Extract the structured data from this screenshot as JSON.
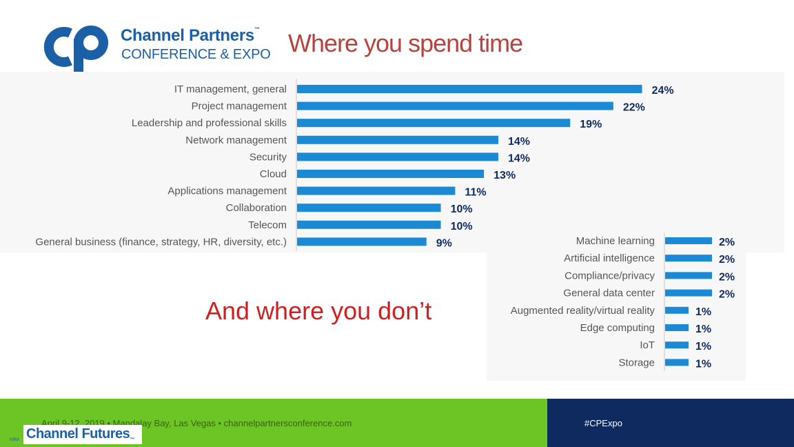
{
  "header": {
    "logo_name": "Channel Partners",
    "logo_tm": "™",
    "logo_sub": "CONFERENCE & EXPO",
    "title": "Where you spend time"
  },
  "subtitle": "And where you don’t",
  "chart_data": [
    {
      "type": "bar",
      "orientation": "horizontal",
      "title": "Where you spend time",
      "categories": [
        "IT management, general",
        "Project management",
        "Leadership and professional skills",
        "Network management",
        "Security",
        "Cloud",
        "Applications management",
        "Collaboration",
        "Telecom",
        "General business (finance, strategy, HR, diversity, etc.)"
      ],
      "values": [
        24,
        22,
        19,
        14,
        14,
        13,
        11,
        10,
        10,
        9
      ],
      "labels": [
        "24%",
        "22%",
        "19%",
        "14%",
        "14%",
        "13%",
        "11%",
        "10%",
        "10%",
        "9%"
      ],
      "xlim": [
        0,
        28
      ],
      "color": "#1a8ad4"
    },
    {
      "type": "bar",
      "orientation": "horizontal",
      "title": "And where you don’t",
      "categories": [
        "Machine learning",
        "Artificial intelligence",
        "Compliance/privacy",
        "General data center",
        "Augmented reality/virtual reality",
        "Edge computing",
        "IoT",
        "Storage"
      ],
      "values": [
        2,
        2,
        2,
        2,
        1,
        1,
        1,
        1
      ],
      "labels": [
        "2%",
        "2%",
        "2%",
        "2%",
        "1%",
        "1%",
        "1%",
        "1%"
      ],
      "xlim": [
        0,
        4
      ],
      "color": "#1a8ad4"
    }
  ],
  "footer": {
    "event_info": "April 9-12, 2019 • Mandalay Bay, Las Vegas • channelpartnersconference.com",
    "hashtag": "#CPExpo",
    "brand": "Channel Futures",
    "brand_tm": "™",
    "tiny": "Infor"
  },
  "colors": {
    "brand_blue": "#1b5fa6",
    "bar_blue": "#1a8ad4",
    "footer_green": "#6cc524",
    "footer_navy": "#0e2a5e",
    "title_red": "#b5433e",
    "subtitle_red": "#d01f1f"
  }
}
